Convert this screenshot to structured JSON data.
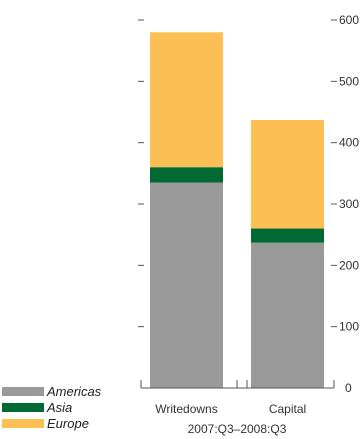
{
  "chart_data": {
    "type": "bar",
    "stacked": true,
    "categories": [
      "Writedowns",
      "Capital"
    ],
    "x_group_label": "2007:Q3–2008:Q3",
    "series": [
      {
        "name": "Americas",
        "color": "#9a9a9a",
        "values": [
          335,
          237
        ]
      },
      {
        "name": "Asia",
        "color": "#006a32",
        "values": [
          25,
          23
        ]
      },
      {
        "name": "Europe",
        "color": "#fcbf53",
        "values": [
          220,
          177
        ]
      }
    ],
    "y_ticks": [
      "100",
      "200",
      "300",
      "400",
      "500",
      "600"
    ],
    "y_zero_label": "0",
    "ylim": [
      0,
      600
    ],
    "legend_position": "bottom-left",
    "grid": false
  }
}
